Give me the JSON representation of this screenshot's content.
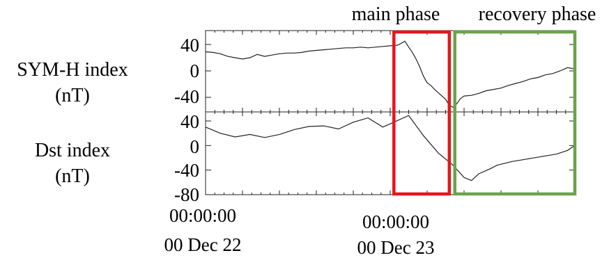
{
  "chart_data": [
    {
      "type": "line",
      "ylabel": [
        "SYM-H index",
        "(nT)"
      ],
      "yticks": [
        40,
        0,
        -40
      ],
      "ylim": [
        -60,
        60
      ],
      "xlim": [
        0,
        1
      ],
      "series": [
        {
          "color": "#222222",
          "x": [
            0,
            0.02,
            0.04,
            0.06,
            0.08,
            0.1,
            0.12,
            0.14,
            0.16,
            0.18,
            0.2,
            0.22,
            0.24,
            0.26,
            0.28,
            0.3,
            0.32,
            0.34,
            0.36,
            0.38,
            0.4,
            0.42,
            0.44,
            0.46,
            0.48,
            0.5,
            0.52,
            0.54,
            0.55,
            0.56,
            0.57,
            0.58,
            0.59,
            0.6,
            0.61,
            0.62,
            0.63,
            0.64,
            0.65,
            0.66,
            0.67,
            0.68,
            0.69,
            0.7,
            0.72,
            0.74,
            0.76,
            0.78,
            0.8,
            0.82,
            0.84,
            0.86,
            0.88,
            0.9,
            0.92,
            0.94,
            0.96,
            0.98,
            1.0
          ],
          "values": [
            29,
            28,
            26,
            22,
            20,
            18,
            20,
            25,
            22,
            24,
            26,
            27,
            27,
            28,
            30,
            31,
            32,
            33,
            34,
            35,
            35,
            36,
            35,
            36,
            37,
            38,
            39,
            45,
            36,
            28,
            18,
            6,
            -8,
            -18,
            -22,
            -28,
            -33,
            -38,
            -43,
            -52,
            -55,
            -50,
            -42,
            -38,
            -37,
            -34,
            -30,
            -28,
            -26,
            -22,
            -19,
            -16,
            -12,
            -10,
            -6,
            -4,
            0,
            5,
            3
          ]
        }
      ]
    },
    {
      "type": "line",
      "ylabel": [
        "Dst index",
        "(nT)"
      ],
      "yticks": [
        40,
        0,
        -40,
        -80
      ],
      "ylim": [
        -80,
        55
      ],
      "xlim": [
        0,
        1
      ],
      "xticks": [
        {
          "x": 0,
          "time": "00:00:00",
          "date": "00 Dec 22"
        },
        {
          "x": 0.575,
          "time": "00:00:00",
          "date": "00 Dec 23"
        }
      ],
      "series": [
        {
          "color": "#222222",
          "x": [
            0,
            0.04,
            0.08,
            0.12,
            0.16,
            0.2,
            0.24,
            0.28,
            0.32,
            0.36,
            0.4,
            0.44,
            0.48,
            0.51,
            0.55,
            0.59,
            0.63,
            0.67,
            0.7,
            0.72,
            0.74,
            0.77,
            0.79,
            0.83,
            0.87,
            0.91,
            0.95,
            0.98,
            1.0
          ],
          "values": [
            30,
            20,
            14,
            18,
            13,
            18,
            26,
            31,
            32,
            27,
            38,
            45,
            30,
            38,
            49,
            16,
            -12,
            -32,
            -52,
            -57,
            -46,
            -38,
            -32,
            -26,
            -22,
            -18,
            -14,
            -8,
            0
          ]
        }
      ]
    }
  ],
  "annotations": {
    "main": {
      "label": "main phase",
      "color": "#e8151b",
      "x_range": [
        0.51,
        0.66
      ]
    },
    "recovery": {
      "label": "recovery phase",
      "color": "#6ba349",
      "x_range": [
        0.675,
        1.0
      ]
    }
  }
}
